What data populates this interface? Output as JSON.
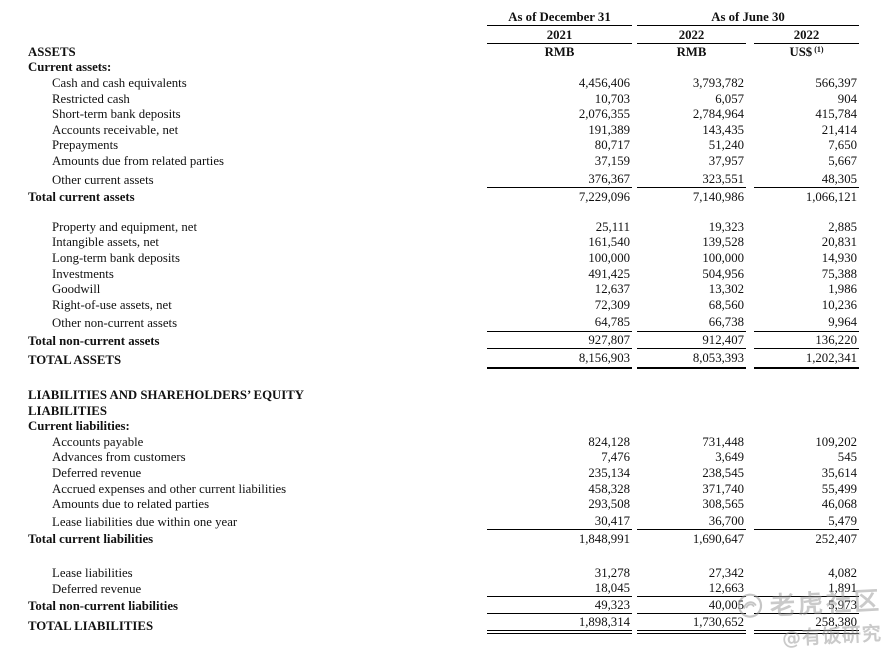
{
  "header": {
    "group1": "As of December 31",
    "group2": "As of June 30",
    "years": [
      "2021",
      "2022",
      "2022"
    ],
    "units": [
      "RMB",
      "RMB",
      "US$"
    ],
    "unit3_sup": "(1)"
  },
  "table": {
    "assets_heading": "ASSETS",
    "rows": [
      {
        "label": "Current assets:",
        "style": "section",
        "cells": [
          "",
          "",
          ""
        ]
      },
      {
        "label": "Cash and cash equivalents",
        "style": "item",
        "cells": [
          "4,456,406",
          "3,793,782",
          "566,397"
        ]
      },
      {
        "label": "Restricted cash",
        "style": "item",
        "cells": [
          "10,703",
          "6,057",
          "904"
        ]
      },
      {
        "label": "Short-term bank deposits",
        "style": "item",
        "cells": [
          "2,076,355",
          "2,784,964",
          "415,784"
        ]
      },
      {
        "label": "Accounts receivable, net",
        "style": "item",
        "cells": [
          "191,389",
          "143,435",
          "21,414"
        ]
      },
      {
        "label": "Prepayments",
        "style": "item",
        "cells": [
          "80,717",
          "51,240",
          "7,650"
        ]
      },
      {
        "label": "Amounts due from related parties",
        "style": "item",
        "cells": [
          "37,159",
          "37,957",
          "5,667"
        ]
      },
      {
        "label": "Other current assets",
        "style": "item",
        "cells": [
          "376,367",
          "323,551",
          "48,305"
        ],
        "rule": "single",
        "gap": 3
      },
      {
        "label": "Total current assets",
        "style": "total",
        "cells": [
          "7,229,096",
          "7,140,986",
          "1,066,121"
        ],
        "gap": 2
      },
      {
        "style": "spacer",
        "h": 14
      },
      {
        "label": "Property and equipment, net",
        "style": "item",
        "cells": [
          "25,111",
          "19,323",
          "2,885"
        ]
      },
      {
        "label": "Intangible assets, net",
        "style": "item",
        "cells": [
          "161,540",
          "139,528",
          "20,831"
        ]
      },
      {
        "label": "Long-term bank deposits",
        "style": "item",
        "cells": [
          "100,000",
          "100,000",
          "14,930"
        ]
      },
      {
        "label": "Investments",
        "style": "item",
        "cells": [
          "491,425",
          "504,956",
          "75,388"
        ]
      },
      {
        "label": "Goodwill",
        "style": "item",
        "cells": [
          "12,637",
          "13,302",
          "1,986"
        ]
      },
      {
        "label": "Right-of-use assets, net",
        "style": "item",
        "cells": [
          "72,309",
          "68,560",
          "10,236"
        ]
      },
      {
        "label": "Other non-current assets",
        "style": "item",
        "cells": [
          "64,785",
          "66,738",
          "9,964"
        ],
        "rule": "single",
        "gap": 3
      },
      {
        "label": "Total non-current assets",
        "style": "total",
        "cells": [
          "927,807",
          "912,407",
          "136,220"
        ],
        "rule": "single",
        "gap": 2
      },
      {
        "label": "TOTAL ASSETS",
        "style": "grand",
        "cells": [
          "8,156,903",
          "8,053,393",
          "1,202,341"
        ],
        "rule": "thick",
        "gap": 4
      },
      {
        "style": "spacer",
        "h": 19
      },
      {
        "label": "LIABILITIES AND SHAREHOLDERS’ EQUITY",
        "style": "section",
        "cells": [
          "",
          "",
          ""
        ]
      },
      {
        "label": "LIABILITIES",
        "style": "section",
        "cells": [
          "",
          "",
          ""
        ]
      },
      {
        "label": "Current liabilities:",
        "style": "section",
        "cells": [
          "",
          "",
          ""
        ]
      },
      {
        "label": "Accounts payable",
        "style": "item",
        "cells": [
          "824,128",
          "731,448",
          "109,202"
        ]
      },
      {
        "label": "Advances from customers",
        "style": "item",
        "cells": [
          "7,476",
          "3,649",
          "545"
        ]
      },
      {
        "label": "Deferred revenue",
        "style": "item",
        "cells": [
          "235,134",
          "238,545",
          "35,614"
        ]
      },
      {
        "label": "Accrued expenses and other current liabilities",
        "style": "item",
        "cells": [
          "458,328",
          "371,740",
          "55,499"
        ]
      },
      {
        "label": "Amounts due to related parties",
        "style": "item",
        "cells": [
          "293,508",
          "308,565",
          "46,068"
        ]
      },
      {
        "label": "Lease liabilities due within one year",
        "style": "item",
        "cells": [
          "30,417",
          "36,700",
          "5,479"
        ],
        "rule": "single",
        "gap": 2
      },
      {
        "label": "Total current liabilities",
        "style": "total",
        "cells": [
          "1,848,991",
          "1,690,647",
          "252,407"
        ],
        "gap": 2
      },
      {
        "style": "spacer",
        "h": 18
      },
      {
        "label": "Lease liabilities",
        "style": "item",
        "cells": [
          "31,278",
          "27,342",
          "4,082"
        ]
      },
      {
        "label": "Deferred revenue",
        "style": "item",
        "cells": [
          "18,045",
          "12,663",
          "1,891"
        ],
        "rule": "single"
      },
      {
        "label": "Total non-current liabilities",
        "style": "total",
        "cells": [
          "49,323",
          "40,005",
          "5,973"
        ],
        "rule": "single",
        "gap": 2
      },
      {
        "label": "TOTAL LIABILITIES",
        "style": "grand",
        "cells": [
          "1,898,314",
          "1,730,652",
          "258,380"
        ],
        "rule": "double",
        "gap": 4
      }
    ]
  },
  "watermark": {
    "logo_icon": "tiger-logo",
    "line1": "老虎社区",
    "line2": "@有饭研究"
  }
}
